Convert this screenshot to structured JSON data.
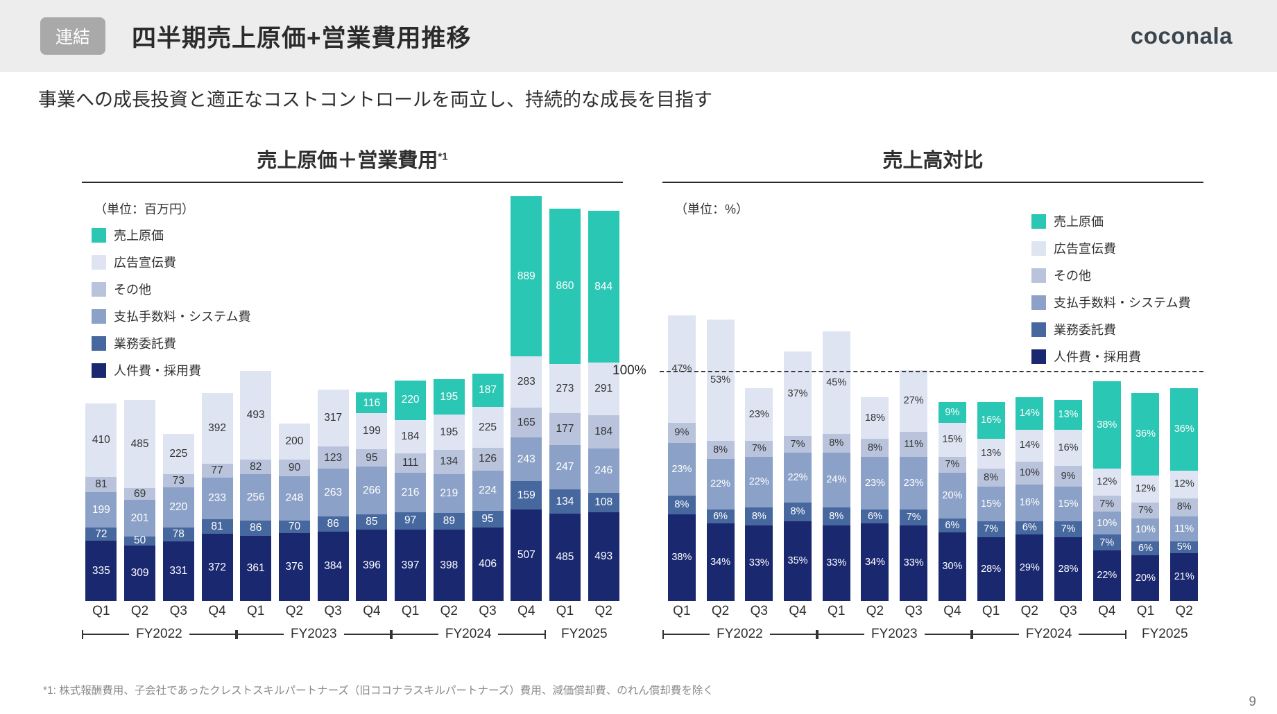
{
  "page": {
    "badge": "連結",
    "title": "四半期売上原価+営業費用推移",
    "logo": "coconala",
    "subtitle": "事業への成長投資と適正なコストコントロールを両立し、持続的な成長を目指す",
    "footnote": "*1: 株式報酬費用、子会社であったクレストスキルパートナーズ（旧ココナラスキルパートナーズ）費用、減価償却費、のれん償却費を除く",
    "page_number": "9"
  },
  "colors": {
    "cost_of_sales": "#2AC7B4",
    "advertising": "#DEE4F1",
    "other": "#B9C4DC",
    "fees_system": "#8CA1C7",
    "outsourcing": "#47689E",
    "personnel": "#1A2870"
  },
  "chart_data": [
    {
      "type": "bar",
      "stacked": true,
      "title": "売上原価＋営業費用",
      "title_superscript": "*1",
      "unit_label": "（単位：百万円）",
      "label_suffix": "",
      "ylim": [
        0,
        2300
      ],
      "categories": [
        "Q1",
        "Q2",
        "Q3",
        "Q4",
        "Q1",
        "Q2",
        "Q3",
        "Q4",
        "Q1",
        "Q2",
        "Q3",
        "Q4",
        "Q1",
        "Q2"
      ],
      "groups": [
        {
          "label": "FY2022",
          "span": 4,
          "bracket": true
        },
        {
          "label": "FY2023",
          "span": 4,
          "bracket": true
        },
        {
          "label": "FY2024",
          "span": 4,
          "bracket": true
        },
        {
          "label": "FY2025",
          "span": 2,
          "bracket": false
        }
      ],
      "series": [
        {
          "key": "personnel",
          "name": "人件費・採用費",
          "color": "#1A2870",
          "label_color": "#FFFFFF",
          "values": [
            335,
            309,
            331,
            372,
            361,
            376,
            384,
            396,
            397,
            398,
            406,
            507,
            485,
            493
          ]
        },
        {
          "key": "outsourcing",
          "name": "業務委託費",
          "color": "#47689E",
          "label_color": "#FFFFFF",
          "values": [
            72,
            50,
            78,
            81,
            86,
            70,
            86,
            85,
            97,
            89,
            95,
            159,
            134,
            108
          ]
        },
        {
          "key": "fees-system",
          "name": "支払手数料・システム費",
          "color": "#8CA1C7",
          "label_color": "#FFFFFF",
          "values": [
            199,
            201,
            220,
            233,
            256,
            248,
            263,
            266,
            216,
            219,
            224,
            243,
            247,
            246
          ]
        },
        {
          "key": "other",
          "name": "その他",
          "color": "#B9C4DC",
          "label_color": "#333333",
          "values": [
            81,
            69,
            73,
            77,
            82,
            90,
            123,
            95,
            111,
            134,
            126,
            165,
            177,
            184
          ]
        },
        {
          "key": "advertising",
          "name": "広告宣伝費",
          "color": "#DEE4F1",
          "label_color": "#333333",
          "values": [
            410,
            485,
            225,
            392,
            493,
            200,
            317,
            199,
            184,
            195,
            225,
            283,
            273,
            291
          ]
        },
        {
          "key": "cost-of-sales",
          "name": "売上原価",
          "color": "#2AC7B4",
          "label_color": "#FFFFFF",
          "values": [
            null,
            null,
            null,
            null,
            null,
            null,
            null,
            116,
            220,
            195,
            187,
            889,
            860,
            844
          ]
        }
      ]
    },
    {
      "type": "bar",
      "stacked": true,
      "title": "売上高対比",
      "unit_label": "（単位：%）",
      "label_suffix": "%",
      "ylim": [
        0,
        130
      ],
      "reference_line": {
        "value": 100,
        "label": "100%"
      },
      "categories": [
        "Q1",
        "Q2",
        "Q3",
        "Q4",
        "Q1",
        "Q2",
        "Q3",
        "Q4",
        "Q1",
        "Q2",
        "Q3",
        "Q4",
        "Q1",
        "Q2"
      ],
      "groups": [
        {
          "label": "FY2022",
          "span": 4,
          "bracket": true
        },
        {
          "label": "FY2023",
          "span": 4,
          "bracket": true
        },
        {
          "label": "FY2024",
          "span": 4,
          "bracket": true
        },
        {
          "label": "FY2025",
          "span": 2,
          "bracket": false
        }
      ],
      "series": [
        {
          "key": "personnel",
          "name": "人件費・採用費",
          "color": "#1A2870",
          "label_color": "#FFFFFF",
          "values": [
            38,
            34,
            33,
            35,
            33,
            34,
            33,
            30,
            28,
            29,
            28,
            22,
            20,
            21
          ]
        },
        {
          "key": "outsourcing",
          "name": "業務委託費",
          "color": "#47689E",
          "label_color": "#FFFFFF",
          "values": [
            8,
            6,
            8,
            8,
            8,
            6,
            7,
            6,
            7,
            6,
            7,
            7,
            6,
            5
          ]
        },
        {
          "key": "fees-system",
          "name": "支払手数料・システム費",
          "color": "#8CA1C7",
          "label_color": "#FFFFFF",
          "values": [
            23,
            22,
            22,
            22,
            24,
            23,
            23,
            20,
            15,
            16,
            15,
            10,
            10,
            11
          ]
        },
        {
          "key": "other",
          "name": "その他",
          "color": "#B9C4DC",
          "label_color": "#333333",
          "values": [
            9,
            8,
            7,
            7,
            8,
            8,
            11,
            7,
            8,
            10,
            9,
            7,
            7,
            8
          ]
        },
        {
          "key": "advertising",
          "name": "広告宣伝費",
          "color": "#DEE4F1",
          "label_color": "#333333",
          "values": [
            47,
            53,
            23,
            37,
            45,
            18,
            27,
            15,
            13,
            14,
            16,
            12,
            12,
            12
          ]
        },
        {
          "key": "cost-of-sales",
          "name": "売上原価",
          "color": "#2AC7B4",
          "label_color": "#FFFFFF",
          "values": [
            null,
            null,
            null,
            null,
            null,
            null,
            null,
            9,
            16,
            14,
            13,
            38,
            36,
            36
          ]
        }
      ]
    }
  ]
}
